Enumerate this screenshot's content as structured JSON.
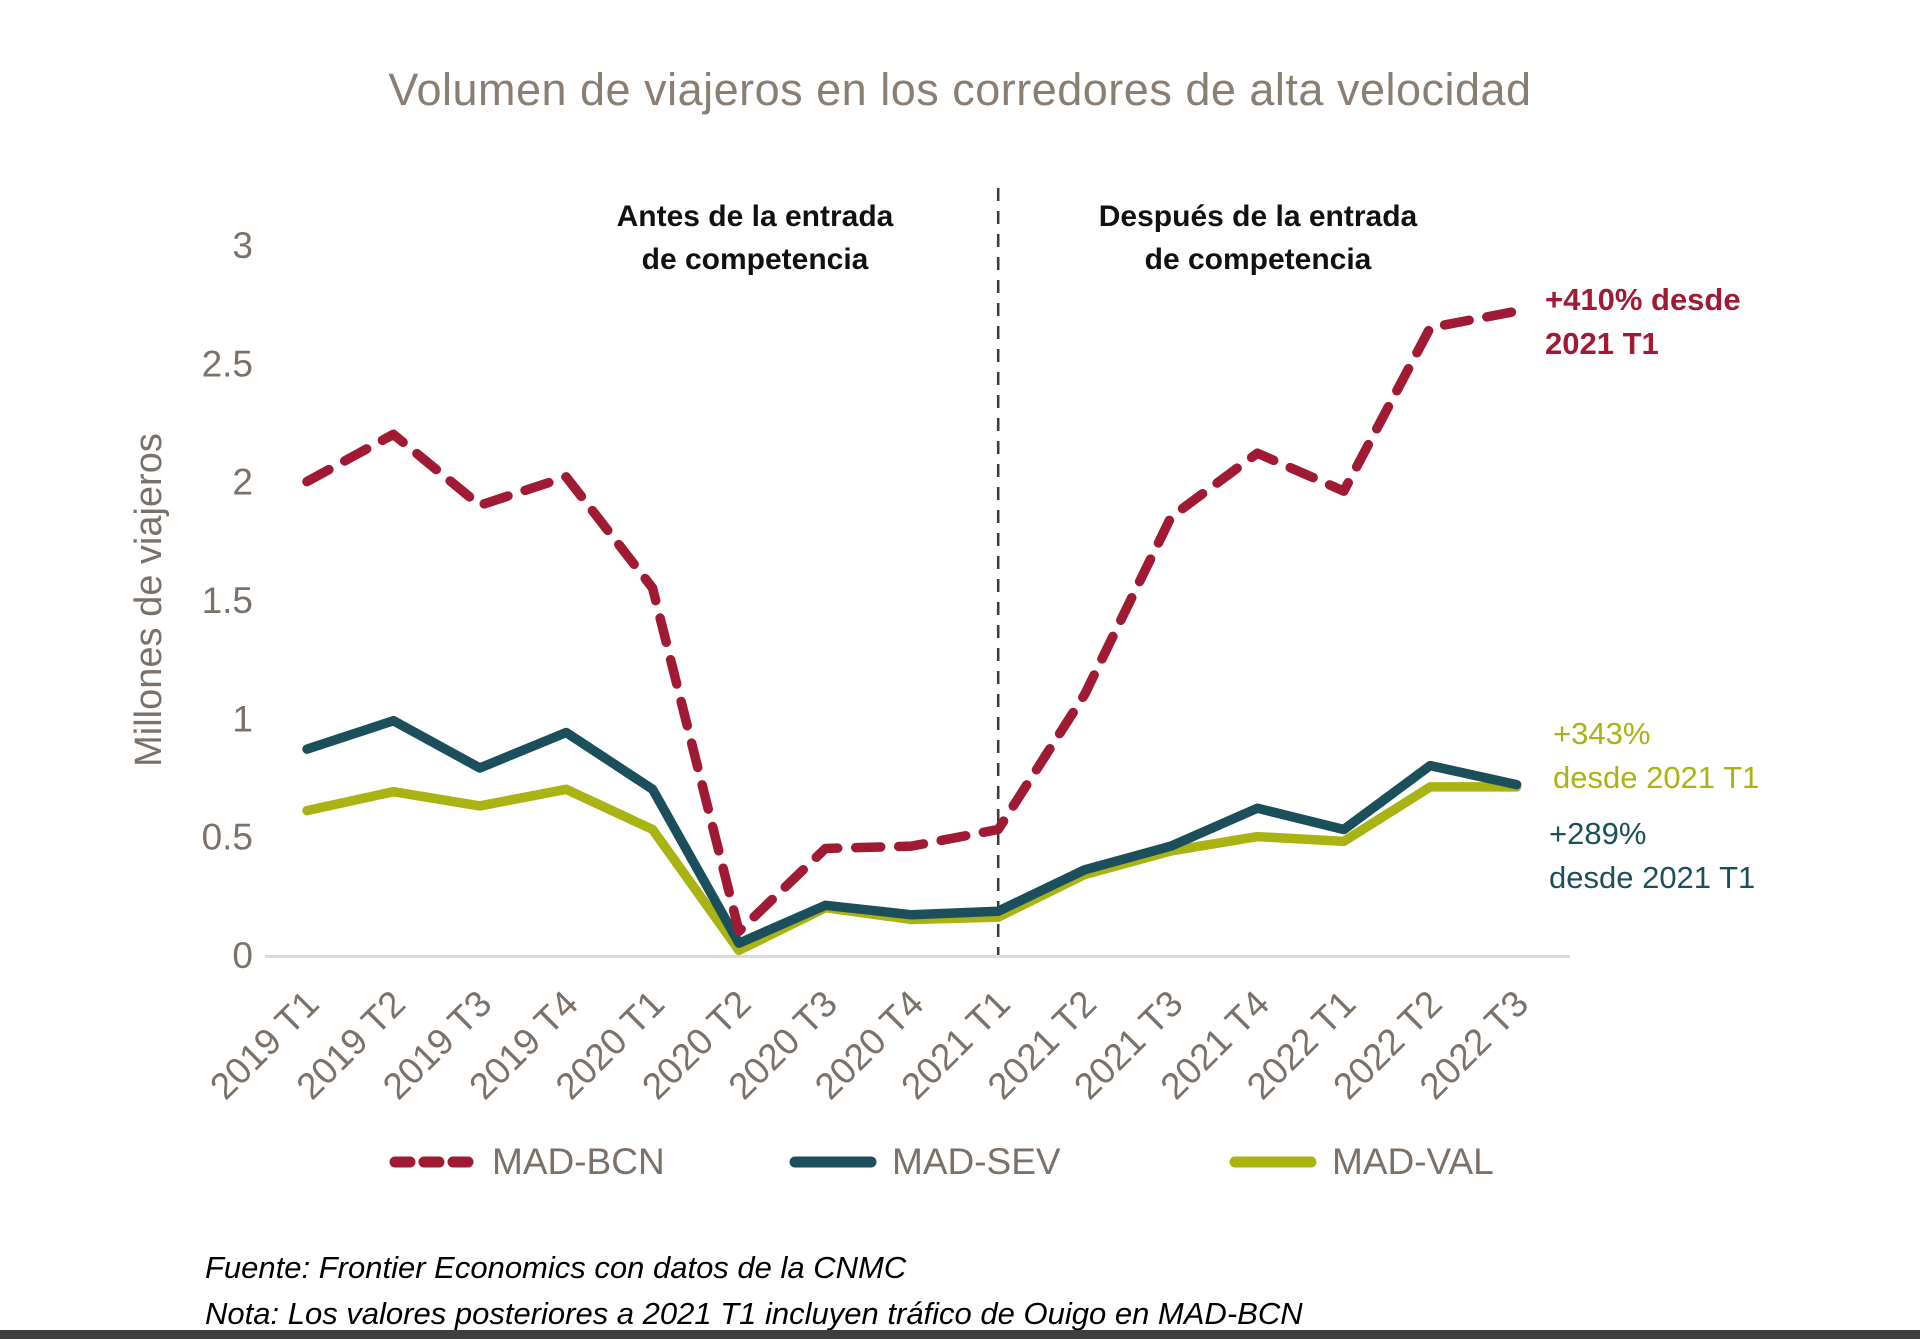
{
  "title": "Volumen de viajeros en los corredores de alta velocidad",
  "y_axis": {
    "title": "Millones de viajeros",
    "ticks": [
      3,
      2.5,
      2,
      1.5,
      1,
      0.5,
      0
    ]
  },
  "chart_data": {
    "type": "line",
    "categories": [
      "2019 T1",
      "2019 T2",
      "2019 T3",
      "2019 T4",
      "2020 T1",
      "2020 T2",
      "2020 T3",
      "2020 T4",
      "2021 T1",
      "2021 T2",
      "2021 T3",
      "2021 T4",
      "2022 T1",
      "2022 T2",
      "2022 T3"
    ],
    "series": [
      {
        "name": "MAD-BCN",
        "style": "dashed",
        "color": "#A01A33",
        "values": [
          2.0,
          2.2,
          1.9,
          2.02,
          1.55,
          0.1,
          0.45,
          0.46,
          0.53,
          1.1,
          1.85,
          2.12,
          1.96,
          2.65,
          2.72
        ]
      },
      {
        "name": "MAD-SEV",
        "style": "solid",
        "color": "#1C4F5C",
        "values": [
          0.87,
          0.99,
          0.79,
          0.94,
          0.7,
          0.05,
          0.21,
          0.17,
          0.185,
          0.36,
          0.46,
          0.62,
          0.53,
          0.8,
          0.72
        ]
      },
      {
        "name": "MAD-VAL",
        "style": "solid",
        "color": "#A9B312",
        "values": [
          0.61,
          0.69,
          0.63,
          0.7,
          0.53,
          0.02,
          0.2,
          0.15,
          0.16,
          0.34,
          0.44,
          0.5,
          0.48,
          0.71,
          0.71
        ]
      }
    ],
    "ylabel": "Millones de viajeros",
    "xlabel": "",
    "ylim": [
      0,
      3
    ],
    "grid": false,
    "legend_position": "bottom",
    "divider_at_category": "2021 T1"
  },
  "annotations": {
    "before": "Antes de la entrada\nde competencia",
    "after": "Después de la entrada\nde competencia",
    "bcn_growth": "+410% desde\n2021 T1",
    "val_growth": "+343%\ndesde 2021 T1",
    "sev_growth": "+289%\ndesde 2021 T1"
  },
  "footer": {
    "source": "Fuente: Frontier Economics con datos de la CNMC",
    "note": "Nota: Los valores posteriores a 2021 T1 incluyen tráfico de Ouigo en MAD-BCN"
  },
  "colors": {
    "title_text": "#8A7E72",
    "axis_text": "#7C7168",
    "baseline": "#DADADA",
    "divider": "#3A3A3A"
  }
}
